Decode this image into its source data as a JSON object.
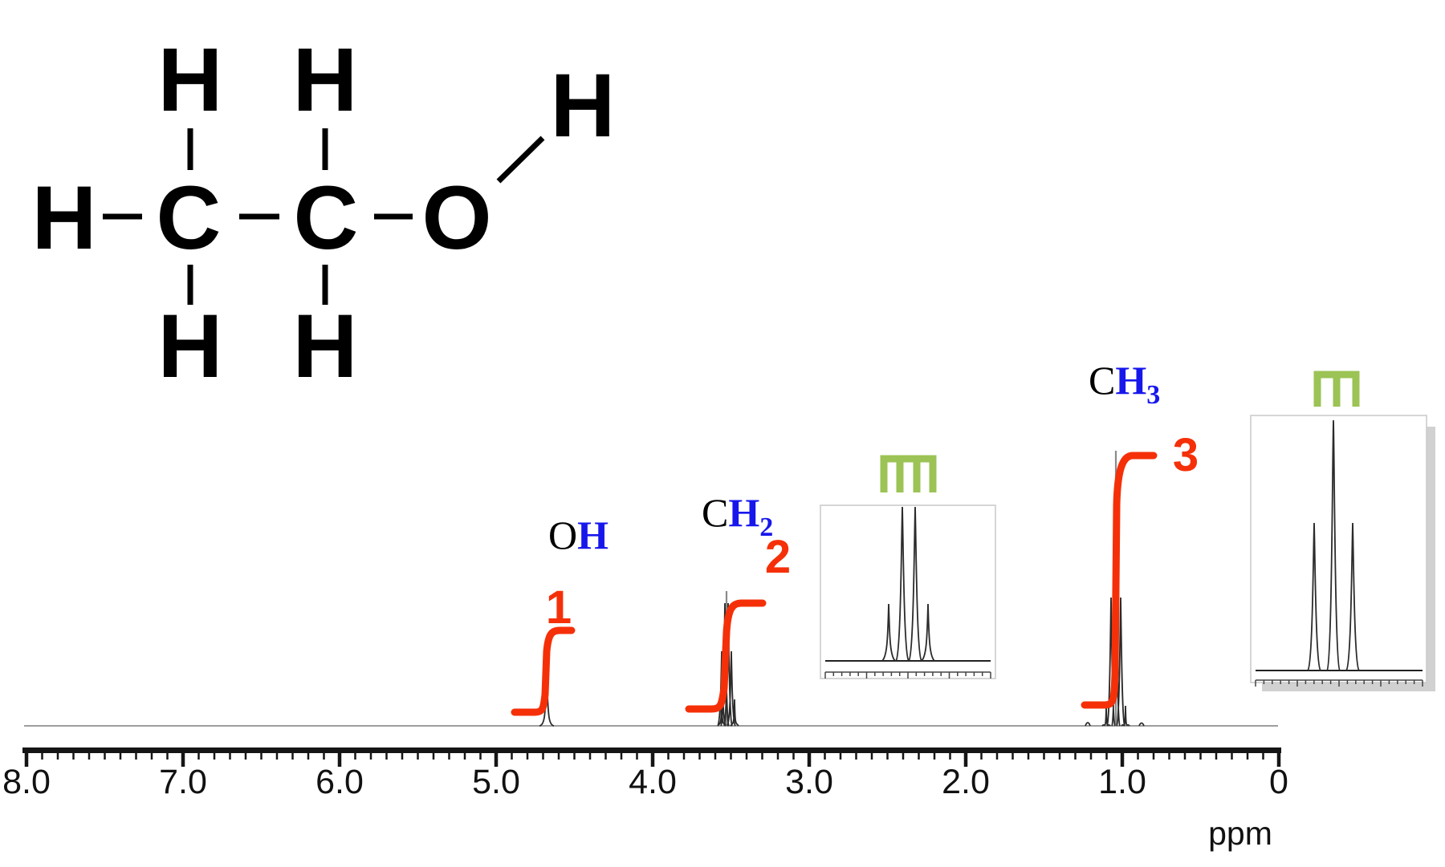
{
  "colors": {
    "red": "#f53008",
    "blue": "#1717ec",
    "green": "#9cc355",
    "black": "#000000"
  },
  "formula": {
    "atoms": [
      {
        "pos": "left",
        "symbol": "H"
      },
      {
        "pos": "c1",
        "symbol": "C"
      },
      {
        "pos": "c2",
        "symbol": "C"
      },
      {
        "pos": "oxygen",
        "symbol": "O"
      },
      {
        "pos": "c1-top",
        "symbol": "H"
      },
      {
        "pos": "c2-top",
        "symbol": "H"
      },
      {
        "pos": "c1-bottom",
        "symbol": "H"
      },
      {
        "pos": "c2-bottom",
        "symbol": "H"
      },
      {
        "pos": "hydroxyl",
        "symbol": "H"
      }
    ]
  },
  "labels": {
    "assignments": [
      {
        "black": "O",
        "blue": "H",
        "sub": ""
      },
      {
        "black": "C",
        "blue": "H",
        "sub": "2"
      },
      {
        "black": "C",
        "blue": "H",
        "sub": "3"
      }
    ],
    "integrals": [
      "1",
      "2",
      "3"
    ]
  },
  "chart_data": {
    "type": "line",
    "kind": "1H NMR spectrum",
    "xlabel": "ppm",
    "x_range": [
      8.0,
      0.0
    ],
    "x_axis_reversed": true,
    "x_tick_labels": [
      "8.0",
      "7.0",
      "6.0",
      "5.0",
      "4.0",
      "3.0",
      "2.0",
      "1.0",
      "0"
    ],
    "minor_tick_step_ppm": 0.1,
    "major_tick_step_ppm": 1.0,
    "peaks": [
      {
        "assignment": "OH",
        "shift_ppm": 4.7,
        "multiplicity": "singlet",
        "integral": 1
      },
      {
        "assignment": "CH2",
        "shift_ppm": 3.55,
        "multiplicity": "quartet",
        "integral": 2,
        "inset_relative_intensities": [
          1,
          3,
          3,
          1
        ]
      },
      {
        "assignment": "CH3",
        "shift_ppm": 1.05,
        "multiplicity": "triplet",
        "integral": 3,
        "inset_relative_intensities": [
          1,
          2,
          1
        ]
      }
    ],
    "insets": [
      {
        "peak": "CH2",
        "pattern": "quartet",
        "lines": 4
      },
      {
        "peak": "CH3",
        "pattern": "triplet",
        "lines": 3
      }
    ]
  }
}
